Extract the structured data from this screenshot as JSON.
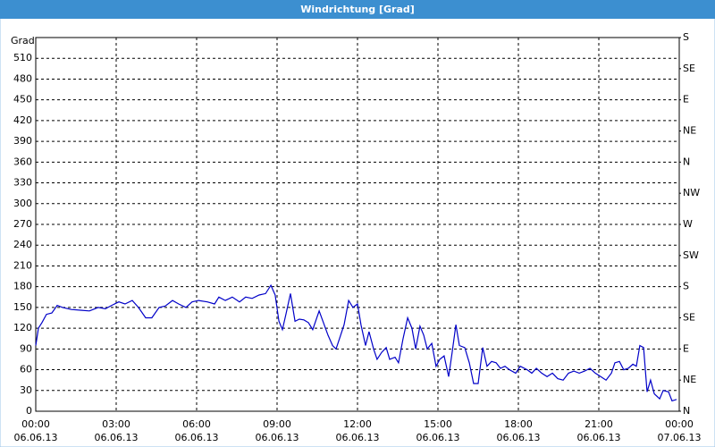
{
  "chart_data": {
    "type": "line",
    "title": "Windrichtung [Grad]",
    "y_label": "Grad",
    "x": [
      0,
      0.1,
      0.23,
      0.4,
      0.6,
      0.8,
      1,
      1.33,
      1.67,
      2,
      2.33,
      2.6,
      2.83,
      3.1,
      3.33,
      3.6,
      3.83,
      4.1,
      4.33,
      4.6,
      4.83,
      5.1,
      5.33,
      5.6,
      5.83,
      6.07,
      6.4,
      6.67,
      6.83,
      7.07,
      7.33,
      7.6,
      7.83,
      8.07,
      8.33,
      8.57,
      8.77,
      8.93,
      9.07,
      9.2,
      9.33,
      9.5,
      9.67,
      9.83,
      10,
      10.17,
      10.33,
      10.57,
      10.73,
      10.9,
      11.07,
      11.2,
      11.33,
      11.5,
      11.67,
      11.83,
      12,
      12.13,
      12.3,
      12.43,
      12.6,
      12.73,
      12.9,
      13.07,
      13.2,
      13.4,
      13.53,
      13.7,
      13.87,
      14.03,
      14.17,
      14.33,
      14.47,
      14.6,
      14.77,
      14.93,
      15.07,
      15.23,
      15.4,
      15.53,
      15.67,
      15.8,
      16,
      16.17,
      16.33,
      16.5,
      16.67,
      16.83,
      17,
      17.17,
      17.33,
      17.5,
      17.67,
      17.9,
      18.07,
      18.33,
      18.5,
      18.67,
      18.87,
      19.07,
      19.27,
      19.47,
      19.67,
      19.87,
      20.07,
      20.27,
      20.47,
      20.67,
      20.87,
      21.07,
      21.27,
      21.47,
      21.6,
      21.77,
      21.93,
      22.1,
      22.27,
      22.4,
      22.53,
      22.67,
      22.8,
      22.93,
      23.07,
      23.27,
      23.4,
      23.6,
      23.73,
      23.9
    ],
    "series": [
      {
        "name": "Windrichtung",
        "color": "#0000c8",
        "values": [
          95,
          120,
          128,
          140,
          142,
          153,
          150,
          147,
          146,
          145,
          150,
          148,
          153,
          158,
          155,
          160,
          150,
          135,
          135,
          150,
          152,
          160,
          155,
          150,
          158,
          160,
          158,
          155,
          165,
          160,
          165,
          158,
          165,
          163,
          168,
          170,
          182,
          168,
          130,
          118,
          140,
          170,
          130,
          133,
          132,
          128,
          118,
          145,
          128,
          110,
          95,
          90,
          105,
          125,
          160,
          150,
          155,
          125,
          95,
          115,
          90,
          75,
          85,
          92,
          75,
          78,
          70,
          105,
          135,
          120,
          90,
          123,
          110,
          90,
          98,
          65,
          75,
          80,
          50,
          85,
          125,
          95,
          92,
          70,
          40,
          40,
          92,
          65,
          72,
          70,
          62,
          65,
          60,
          55,
          65,
          60,
          55,
          62,
          55,
          50,
          55,
          47,
          45,
          55,
          58,
          55,
          58,
          62,
          55,
          50,
          45,
          55,
          70,
          72,
          60,
          62,
          68,
          65,
          95,
          92,
          28,
          45,
          25,
          18,
          30,
          28,
          15,
          17
        ]
      }
    ],
    "xlim": [
      0,
      24
    ],
    "xticks": [
      {
        "value": 0,
        "label": "00:00"
      },
      {
        "value": 3,
        "label": "03:00"
      },
      {
        "value": 6,
        "label": "06:00"
      },
      {
        "value": 9,
        "label": "09:00"
      },
      {
        "value": 12,
        "label": "12:00"
      },
      {
        "value": 15,
        "label": "15:00"
      },
      {
        "value": 18,
        "label": "18:00"
      },
      {
        "value": 21,
        "label": "21:00"
      },
      {
        "value": 24,
        "label": "00:00"
      }
    ],
    "xtick_dates": [
      "06.06.13",
      "06.06.13",
      "06.06.13",
      "06.06.13",
      "06.06.13",
      "06.06.13",
      "06.06.13",
      "06.06.13",
      "07.06.13"
    ],
    "ylim": [
      0,
      540
    ],
    "yticks": [
      0,
      30,
      60,
      90,
      120,
      150,
      180,
      210,
      240,
      270,
      300,
      330,
      360,
      390,
      420,
      450,
      480,
      510
    ],
    "y2lim": [
      0,
      540
    ],
    "y2ticks": [
      {
        "value": 0,
        "label": "N"
      },
      {
        "value": 45,
        "label": "NE"
      },
      {
        "value": 90,
        "label": "E"
      },
      {
        "value": 135,
        "label": "SE"
      },
      {
        "value": 180,
        "label": "S"
      },
      {
        "value": 225,
        "label": "SW"
      },
      {
        "value": 270,
        "label": "W"
      },
      {
        "value": 315,
        "label": "NW"
      },
      {
        "value": 360,
        "label": "N"
      },
      {
        "value": 405,
        "label": "NE"
      },
      {
        "value": 450,
        "label": "E"
      },
      {
        "value": 495,
        "label": "SE"
      },
      {
        "value": 540,
        "label": "S"
      }
    ],
    "grid": true
  }
}
